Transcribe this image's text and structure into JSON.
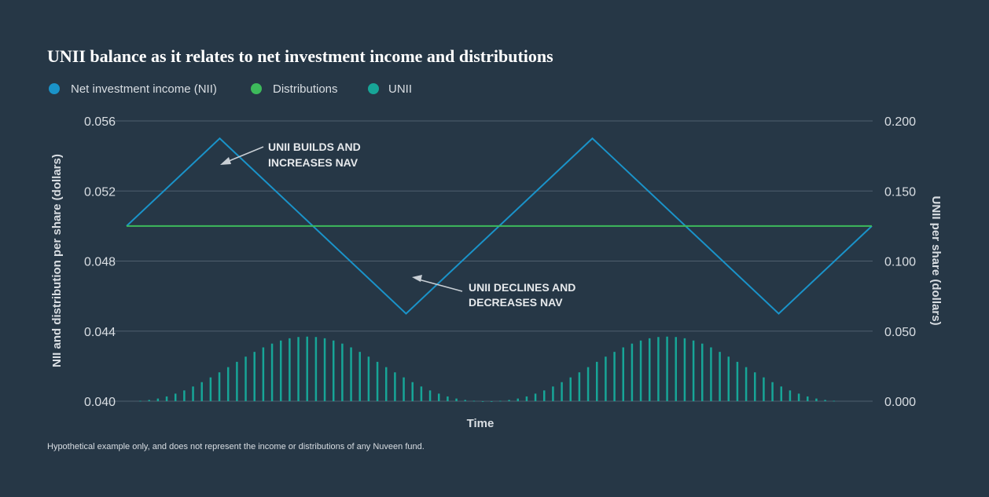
{
  "colors": {
    "background": "#263746",
    "nii": "#1a93c9",
    "distributions": "#3dba5b",
    "unii": "#17a597",
    "grid": "#4f5f6d"
  },
  "chart_data": {
    "type": "line",
    "title": "UNII balance as it relates to net investment income and distributions",
    "xlabel": "Time",
    "ylabel": "NII and distribution per share (dollars)",
    "y2label": "UNII per share (dollars)",
    "ylim": [
      0.04,
      0.056
    ],
    "y2lim": [
      0.0,
      0.2
    ],
    "yticks": [
      "0.056",
      "0.052",
      "0.048",
      "0.044",
      "0.040"
    ],
    "y2ticks": [
      "0.200",
      "0.150",
      "0.100",
      "0.050",
      "0.000"
    ],
    "legend": [
      {
        "name": "Net investment income (NII)",
        "color": "#1a93c9"
      },
      {
        "name": "Distributions",
        "color": "#3dba5b"
      },
      {
        "name": "UNII",
        "color": "#17a597"
      }
    ],
    "x_range": [
      0,
      1
    ],
    "series": [
      {
        "name": "Net investment income (NII)",
        "axis": "left",
        "x": [
          0,
          0.125,
          0.375,
          0.625,
          0.875,
          1.0
        ],
        "values": [
          0.05,
          0.055,
          0.045,
          0.055,
          0.045,
          0.05
        ]
      },
      {
        "name": "Distributions",
        "axis": "left",
        "x": [
          0,
          1.0
        ],
        "values": [
          0.05,
          0.05
        ]
      }
    ],
    "unii_bars": {
      "axis": "right",
      "x_start": 0.0185,
      "x_step": 0.01178,
      "values": [
        0.0003,
        0.0009,
        0.0019,
        0.0034,
        0.0054,
        0.0077,
        0.0105,
        0.0136,
        0.017,
        0.0206,
        0.0243,
        0.0281,
        0.0318,
        0.0352,
        0.0384,
        0.0411,
        0.0433,
        0.0449,
        0.0458,
        0.0461,
        0.0458,
        0.0449,
        0.0433,
        0.0411,
        0.0384,
        0.0352,
        0.0318,
        0.0281,
        0.0243,
        0.0206,
        0.017,
        0.0136,
        0.0105,
        0.0077,
        0.0054,
        0.0034,
        0.0019,
        0.0009,
        0.0003,
        0.0,
        0.0,
        0.0003,
        0.0009,
        0.0019,
        0.0034,
        0.0054,
        0.0077,
        0.0105,
        0.0136,
        0.017,
        0.0206,
        0.0243,
        0.0281,
        0.0318,
        0.0352,
        0.0384,
        0.0411,
        0.0433,
        0.0449,
        0.0458,
        0.0461,
        0.0458,
        0.0449,
        0.0433,
        0.0411,
        0.0384,
        0.0352,
        0.0318,
        0.0281,
        0.0243,
        0.0206,
        0.017,
        0.0136,
        0.0105,
        0.0077,
        0.0054,
        0.0034,
        0.0019,
        0.0009,
        0.0003
      ]
    },
    "annotations": [
      {
        "lines": [
          "UNII BUILDS AND",
          "INCREASES NAV"
        ]
      },
      {
        "lines": [
          "UNII DECLINES AND",
          "DECREASES NAV"
        ]
      }
    ],
    "footnote": "Hypothetical example only, and does not represent the income or distributions of any Nuveen fund."
  }
}
